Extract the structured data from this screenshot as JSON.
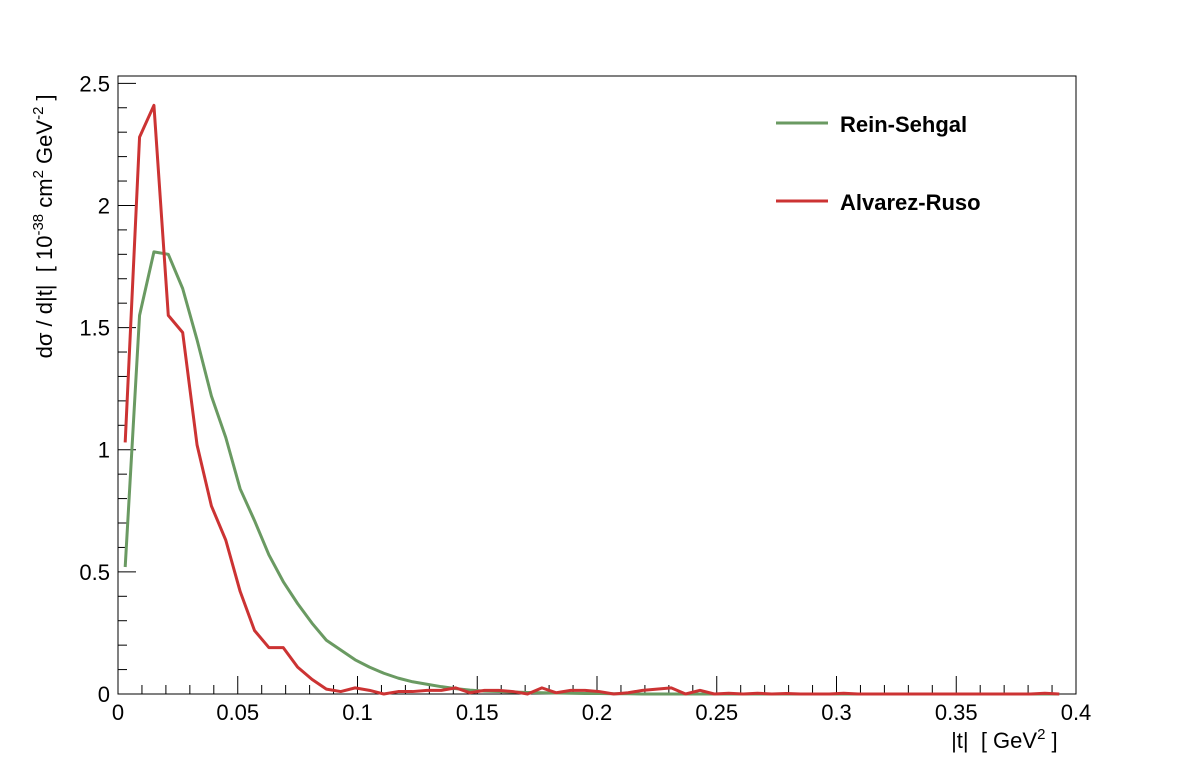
{
  "chart_data": {
    "type": "line",
    "x_label": [
      "|t|  [ GeV",
      "2",
      " ]"
    ],
    "y_label": [
      "dσ / d|t|  [ 10",
      "-38",
      " cm",
      "2",
      " GeV",
      "-2",
      " ]"
    ],
    "x": [
      0.003,
      0.009,
      0.015,
      0.021,
      0.027,
      0.033,
      0.039,
      0.045,
      0.051,
      0.057,
      0.063,
      0.069,
      0.075,
      0.081,
      0.087,
      0.093,
      0.099,
      0.105,
      0.111,
      0.117,
      0.123,
      0.129,
      0.135,
      0.141,
      0.147,
      0.153,
      0.159,
      0.165,
      0.171,
      0.177,
      0.183,
      0.189,
      0.195,
      0.201,
      0.207,
      0.213,
      0.219,
      0.225,
      0.231,
      0.237,
      0.243,
      0.249,
      0.255,
      0.261,
      0.267,
      0.273,
      0.279,
      0.285,
      0.291,
      0.297,
      0.303,
      0.309,
      0.315,
      0.321,
      0.327,
      0.333,
      0.339,
      0.345,
      0.351,
      0.357,
      0.363,
      0.369,
      0.375,
      0.381,
      0.387,
      0.393
    ],
    "series": [
      {
        "name": "Rein-Sehgal",
        "color": "#6a9a62",
        "values": [
          0.52,
          1.55,
          1.81,
          1.8,
          1.66,
          1.45,
          1.22,
          1.05,
          0.84,
          0.71,
          0.57,
          0.46,
          0.37,
          0.29,
          0.22,
          0.18,
          0.14,
          0.11,
          0.085,
          0.065,
          0.05,
          0.04,
          0.03,
          0.022,
          0.016,
          0.012,
          0.01,
          0.008,
          0.006,
          0.005,
          0.004,
          0.003,
          0.002,
          0.002,
          0.001,
          0.001,
          0,
          0,
          0,
          0,
          0,
          0,
          0,
          0,
          0,
          0,
          0,
          0,
          0,
          0,
          0,
          0,
          0,
          0,
          0,
          0,
          0,
          0,
          0,
          0,
          0,
          0,
          0,
          0,
          0,
          0
        ]
      },
      {
        "name": "Alvarez-Ruso",
        "color": "#cc3333",
        "values": [
          1.03,
          2.28,
          2.41,
          1.55,
          1.48,
          1.02,
          0.77,
          0.63,
          0.42,
          0.26,
          0.19,
          0.19,
          0.11,
          0.06,
          0.02,
          0.01,
          0.025,
          0.015,
          0,
          0.01,
          0.01,
          0.015,
          0.015,
          0.025,
          0.005,
          0.015,
          0.015,
          0.01,
          0,
          0.025,
          0.005,
          0.015,
          0.015,
          0.01,
          0,
          0.005,
          0.015,
          0.02,
          0.025,
          0,
          0.015,
          0,
          0.003,
          0,
          0.003,
          0,
          0.002,
          0,
          0,
          0,
          0.003,
          0,
          0,
          0,
          0,
          0,
          0,
          0,
          0,
          0,
          0,
          0,
          0,
          0,
          0.003,
          0
        ]
      }
    ],
    "xlim": [
      0,
      0.4
    ],
    "ylim": [
      0,
      2.53
    ],
    "xticks": [
      0,
      0.05,
      0.1,
      0.15,
      0.2,
      0.25,
      0.3,
      0.35,
      0.4
    ],
    "yticks": [
      0,
      0.5,
      1,
      1.5,
      2,
      2.5
    ],
    "legend": "top-right"
  }
}
